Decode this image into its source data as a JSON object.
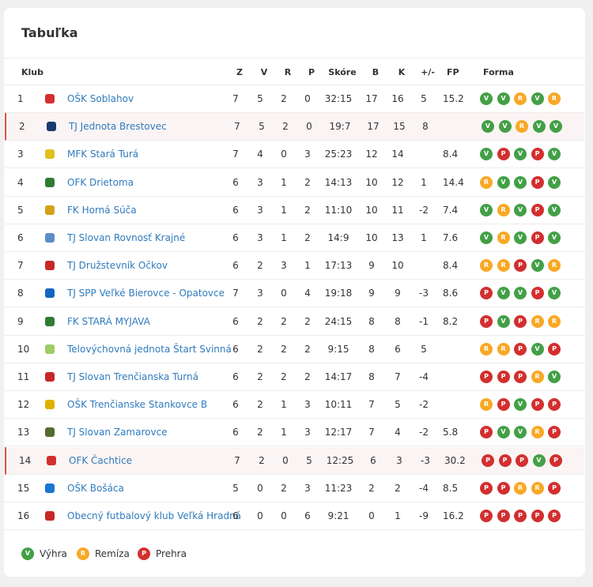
{
  "header": {
    "title": "Tabuľka"
  },
  "table": {
    "columns": [
      "Klub",
      "Z",
      "V",
      "R",
      "P",
      "Skóre",
      "B",
      "K",
      "+/-",
      "FP",
      "Forma"
    ],
    "rows": [
      {
        "pos": 1,
        "club": "OŠK Soblahov",
        "z": 7,
        "v": 5,
        "r": 2,
        "p": 0,
        "score": "32:15",
        "b": 17,
        "k": 16,
        "diff": 5,
        "fp": 15.2,
        "form": [
          "V",
          "V",
          "R",
          "V",
          "R"
        ],
        "logo": "#d32f2f"
      },
      {
        "pos": 2,
        "club": "TJ Jednota Brestovec",
        "z": 7,
        "v": 5,
        "r": 2,
        "p": 0,
        "score": "19:7",
        "b": 17,
        "k": 15,
        "diff": 8,
        "fp": null,
        "form": [
          "V",
          "V",
          "R",
          "V",
          "V"
        ],
        "logo": "#1a3a6e",
        "highlight": true
      },
      {
        "pos": 3,
        "club": "MFK Stará Turá",
        "z": 7,
        "v": 4,
        "r": 0,
        "p": 3,
        "score": "25:23",
        "b": 12,
        "k": 14,
        "diff": null,
        "fp": 8.4,
        "form": [
          "V",
          "P",
          "V",
          "P",
          "V"
        ],
        "logo": "#e0c020"
      },
      {
        "pos": 4,
        "club": "OFK Drietoma",
        "z": 6,
        "v": 3,
        "r": 1,
        "p": 2,
        "score": "14:13",
        "b": 10,
        "k": 12,
        "diff": 1,
        "fp": 14.4,
        "form": [
          "R",
          "V",
          "V",
          "P",
          "V"
        ],
        "logo": "#2e7d32"
      },
      {
        "pos": 5,
        "club": "FK Horná Súča",
        "z": 6,
        "v": 3,
        "r": 1,
        "p": 2,
        "score": "11:10",
        "b": 10,
        "k": 11,
        "diff": -2,
        "fp": 7.4,
        "form": [
          "V",
          "R",
          "V",
          "P",
          "V"
        ],
        "logo": "#d4a017"
      },
      {
        "pos": 6,
        "club": "TJ Slovan Rovnosť Krajné",
        "z": 6,
        "v": 3,
        "r": 1,
        "p": 2,
        "score": "14:9",
        "b": 10,
        "k": 13,
        "diff": 1,
        "fp": 7.6,
        "form": [
          "V",
          "R",
          "V",
          "P",
          "V"
        ],
        "logo": "#5b8fc7"
      },
      {
        "pos": 7,
        "club": "TJ Družstevník Očkov",
        "z": 6,
        "v": 2,
        "r": 3,
        "p": 1,
        "score": "17:13",
        "b": 9,
        "k": 10,
        "diff": null,
        "fp": 8.4,
        "form": [
          "R",
          "R",
          "P",
          "V",
          "R"
        ],
        "logo": "#c62828"
      },
      {
        "pos": 8,
        "club": "TJ SPP Veľké Bierovce - Opatovce",
        "z": 7,
        "v": 3,
        "r": 0,
        "p": 4,
        "score": "19:18",
        "b": 9,
        "k": 9,
        "diff": -3,
        "fp": 8.6,
        "form": [
          "P",
          "V",
          "V",
          "P",
          "V"
        ],
        "logo": "#1565c0"
      },
      {
        "pos": 9,
        "club": "FK STARÁ MYJAVA",
        "z": 6,
        "v": 2,
        "r": 2,
        "p": 2,
        "score": "24:15",
        "b": 8,
        "k": 8,
        "diff": -1,
        "fp": 8.2,
        "form": [
          "P",
          "V",
          "P",
          "R",
          "R"
        ],
        "logo": "#2e7d32"
      },
      {
        "pos": 10,
        "club": "Telovýchovná jednota Štart Svinná",
        "z": 6,
        "v": 2,
        "r": 2,
        "p": 2,
        "score": "9:15",
        "b": 8,
        "k": 6,
        "diff": 5,
        "fp": null,
        "form": [
          "R",
          "R",
          "P",
          "V",
          "P"
        ],
        "logo": "#9ccc65"
      },
      {
        "pos": 11,
        "club": "TJ Slovan Trenčianska Turná",
        "z": 6,
        "v": 2,
        "r": 2,
        "p": 2,
        "score": "14:17",
        "b": 8,
        "k": 7,
        "diff": -4,
        "fp": null,
        "form": [
          "P",
          "P",
          "P",
          "R",
          "V"
        ],
        "logo": "#c62828"
      },
      {
        "pos": 12,
        "club": "OŠK Trenčianske Stankovce B",
        "z": 6,
        "v": 2,
        "r": 1,
        "p": 3,
        "score": "10:11",
        "b": 7,
        "k": 5,
        "diff": -2,
        "fp": null,
        "form": [
          "R",
          "P",
          "V",
          "P",
          "P"
        ],
        "logo": "#e0b000"
      },
      {
        "pos": 13,
        "club": "TJ Slovan Zamarovce",
        "z": 6,
        "v": 2,
        "r": 1,
        "p": 3,
        "score": "12:17",
        "b": 7,
        "k": 4,
        "diff": -2,
        "fp": 5.8,
        "form": [
          "P",
          "V",
          "V",
          "R",
          "P"
        ],
        "logo": "#556b2f"
      },
      {
        "pos": 14,
        "club": "OFK Čachtice",
        "z": 7,
        "v": 2,
        "r": 0,
        "p": 5,
        "score": "12:25",
        "b": 6,
        "k": 3,
        "diff": -3,
        "fp": 30.2,
        "form": [
          "P",
          "P",
          "P",
          "V",
          "P"
        ],
        "logo": "#d32f2f",
        "highlight": true
      },
      {
        "pos": 15,
        "club": "OŠK Bošáca",
        "z": 5,
        "v": 0,
        "r": 2,
        "p": 3,
        "score": "11:23",
        "b": 2,
        "k": 2,
        "diff": -4,
        "fp": 8.5,
        "form": [
          "P",
          "P",
          "R",
          "R",
          "P"
        ],
        "logo": "#1976d2"
      },
      {
        "pos": 16,
        "club": "Obecný futbalový klub Veľká Hradná",
        "z": 6,
        "v": 0,
        "r": 0,
        "p": 6,
        "score": "9:21",
        "b": 0,
        "k": 1,
        "diff": -9,
        "fp": 16.2,
        "form": [
          "P",
          "P",
          "P",
          "P",
          "P"
        ],
        "logo": "#c62828"
      }
    ]
  },
  "legend": [
    {
      "code": "V",
      "label": "Výhra",
      "color": "#43a047"
    },
    {
      "code": "R",
      "label": "Remíza",
      "color": "#f9a825"
    },
    {
      "code": "P",
      "label": "Prehra",
      "color": "#d32f2f"
    }
  ]
}
